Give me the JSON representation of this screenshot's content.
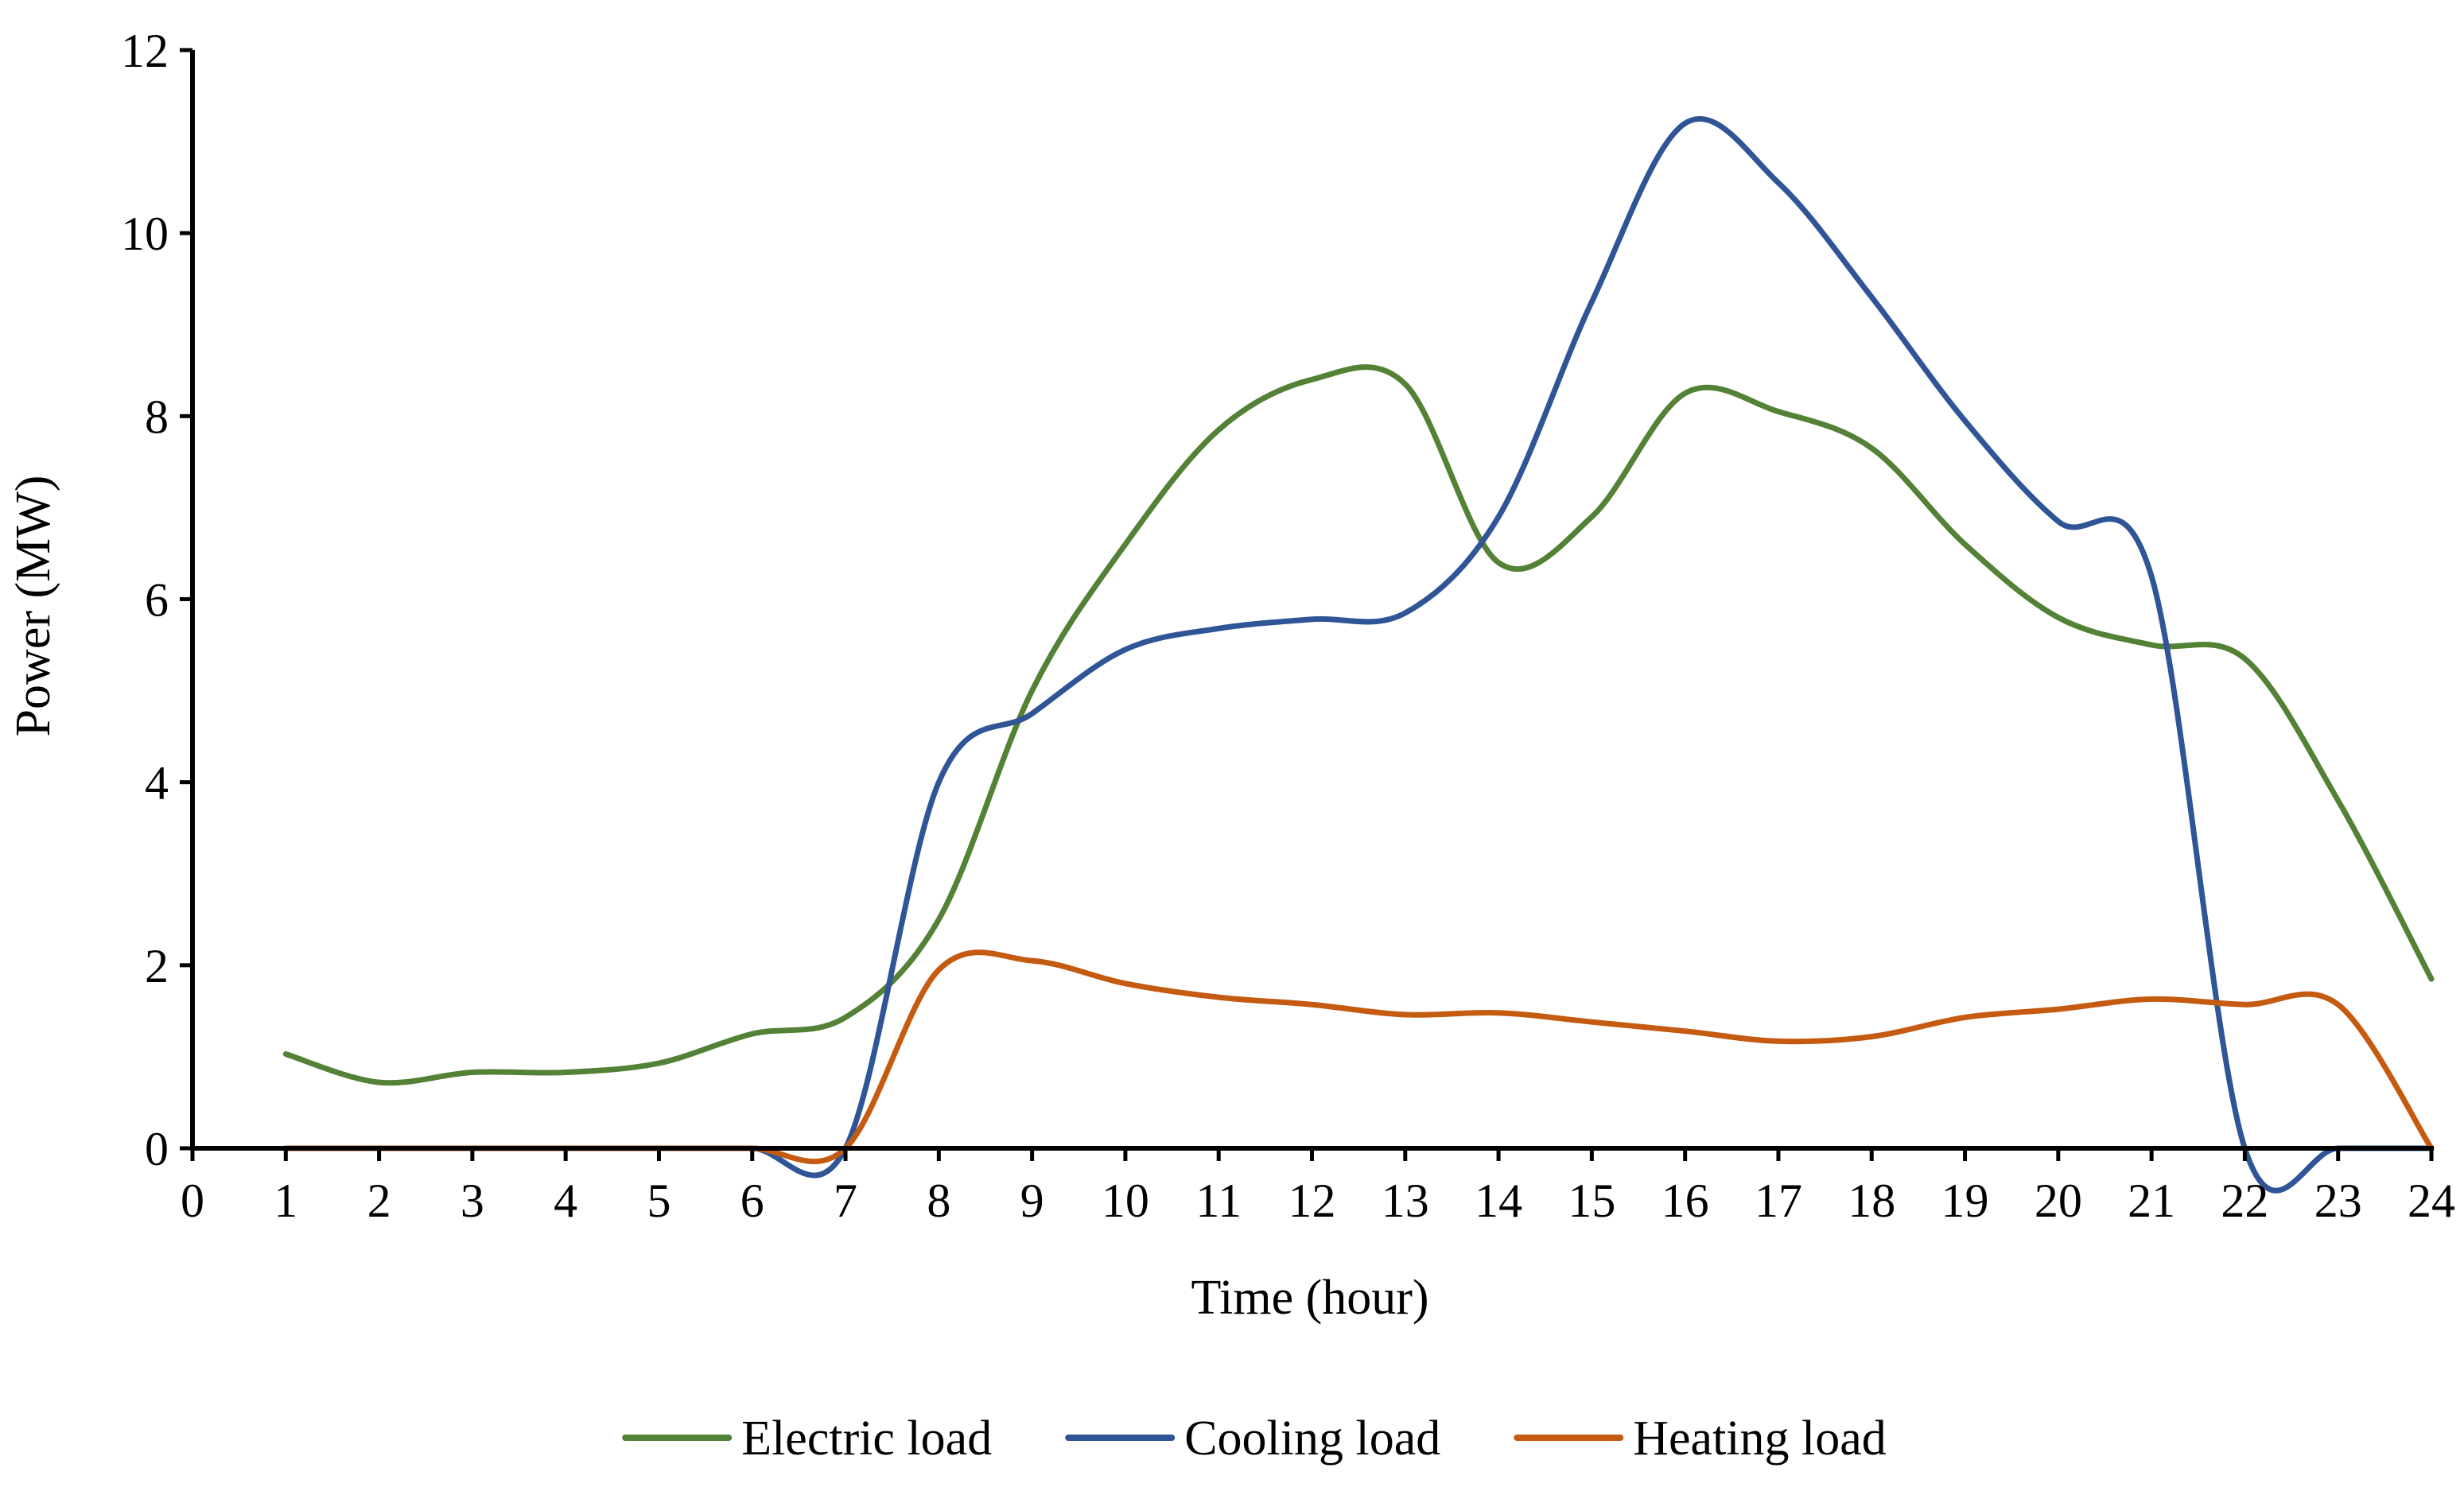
{
  "chart_data": {
    "type": "line",
    "title": "",
    "xlabel": "Time (hour)",
    "ylabel": "Power (MW)",
    "xlim": [
      0,
      24
    ],
    "ylim": [
      0,
      12
    ],
    "xticks": [
      0,
      1,
      2,
      3,
      4,
      5,
      6,
      7,
      8,
      9,
      10,
      11,
      12,
      13,
      14,
      15,
      16,
      17,
      18,
      19,
      20,
      21,
      22,
      23,
      24
    ],
    "yticks": [
      0,
      2,
      4,
      6,
      8,
      10,
      12
    ],
    "grid": false,
    "legend_position": "bottom",
    "x": [
      1,
      2,
      3,
      4,
      5,
      6,
      7,
      8,
      9,
      10,
      11,
      12,
      13,
      14,
      15,
      16,
      17,
      18,
      19,
      20,
      21,
      22,
      23,
      24
    ],
    "series": [
      {
        "name": "Electric load",
        "color": "#538135",
        "values": [
          1.03,
          0.72,
          0.83,
          0.83,
          0.93,
          1.25,
          1.43,
          2.5,
          5.0,
          6.6,
          7.85,
          8.4,
          8.35,
          6.4,
          6.9,
          8.25,
          8.05,
          7.65,
          6.6,
          5.8,
          5.5,
          5.35,
          3.8,
          1.85
        ]
      },
      {
        "name": "Cooling load",
        "color": "#2f5597",
        "values": [
          0,
          0,
          0,
          0,
          0,
          0,
          0,
          4.0,
          4.75,
          5.45,
          5.68,
          5.78,
          5.85,
          6.9,
          9.25,
          11.2,
          10.55,
          9.3,
          7.95,
          6.85,
          6.25,
          0,
          0,
          0
        ]
      },
      {
        "name": "Heating load",
        "color": "#c55a11",
        "values": [
          0,
          0,
          0,
          0,
          0,
          0,
          0,
          1.95,
          2.05,
          1.8,
          1.65,
          1.57,
          1.46,
          1.48,
          1.38,
          1.28,
          1.17,
          1.22,
          1.43,
          1.52,
          1.63,
          1.57,
          1.57,
          0
        ]
      }
    ]
  }
}
